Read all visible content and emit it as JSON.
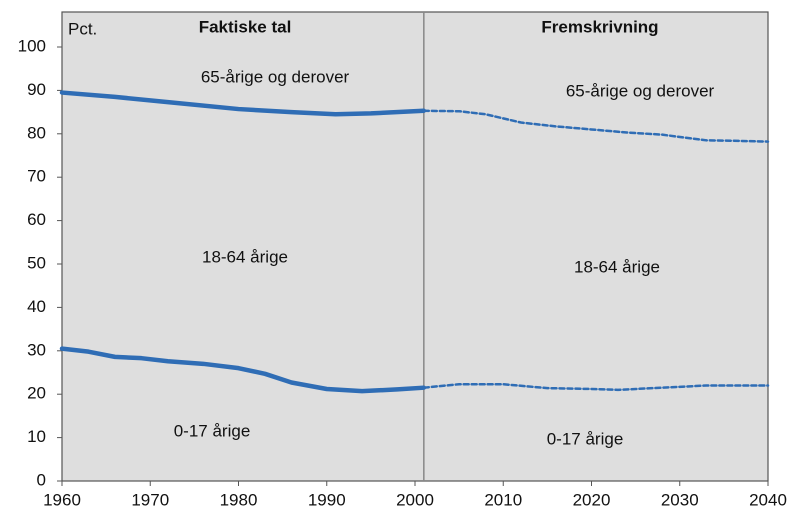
{
  "chart_data": {
    "type": "line",
    "unit_label": "Pct.",
    "section_labels": [
      "Faktiske tal",
      "Fremskrivning"
    ],
    "divider_x": 2001,
    "xlim": [
      1960,
      2040
    ],
    "xticks": [
      1960,
      1970,
      1980,
      1990,
      2000,
      2010,
      2020,
      2030,
      2040
    ],
    "ylim": [
      0,
      100
    ],
    "yticks": [
      0,
      10,
      20,
      30,
      40,
      50,
      60,
      70,
      80,
      90,
      100
    ],
    "series": [
      {
        "color": "#2f6db5",
        "style": "solid",
        "x": [
          1960,
          1966,
          1972,
          1980,
          1986,
          1991,
          1995,
          2001
        ],
        "values": [
          89.5,
          88.5,
          87.3,
          85.7,
          85,
          84.5,
          84.7,
          85.3
        ]
      },
      {
        "color": "#2f6db5",
        "style": "solid",
        "x": [
          1960,
          1963,
          1966,
          1969,
          1972,
          1976,
          1980,
          1983,
          1986,
          1990,
          1994,
          1998,
          2001
        ],
        "values": [
          30.5,
          29.8,
          28.6,
          28.3,
          27.6,
          27,
          26,
          24.7,
          22.7,
          21.2,
          20.7,
          21.1,
          21.5
        ]
      },
      {
        "color": "#2f6db5",
        "style": "dashed",
        "x": [
          2001,
          2005,
          2008,
          2012,
          2016,
          2020,
          2024,
          2028,
          2033,
          2036,
          2040
        ],
        "values": [
          85.3,
          85.2,
          84.5,
          82.6,
          81.7,
          81,
          80.3,
          79.8,
          78.5,
          78.4,
          78.2
        ]
      },
      {
        "color": "#2f6db5",
        "style": "dashed",
        "x": [
          2001,
          2005,
          2010,
          2015,
          2020,
          2023,
          2028,
          2033,
          2040
        ],
        "values": [
          21.5,
          22.3,
          22.3,
          21.4,
          21.2,
          21,
          21.5,
          22,
          22
        ]
      }
    ],
    "annotations": [
      "65-årige og derover",
      "18-64 årige",
      "0-17 årige",
      "65-årige og derover",
      "18-64 årige",
      "0-17 årige"
    ]
  }
}
